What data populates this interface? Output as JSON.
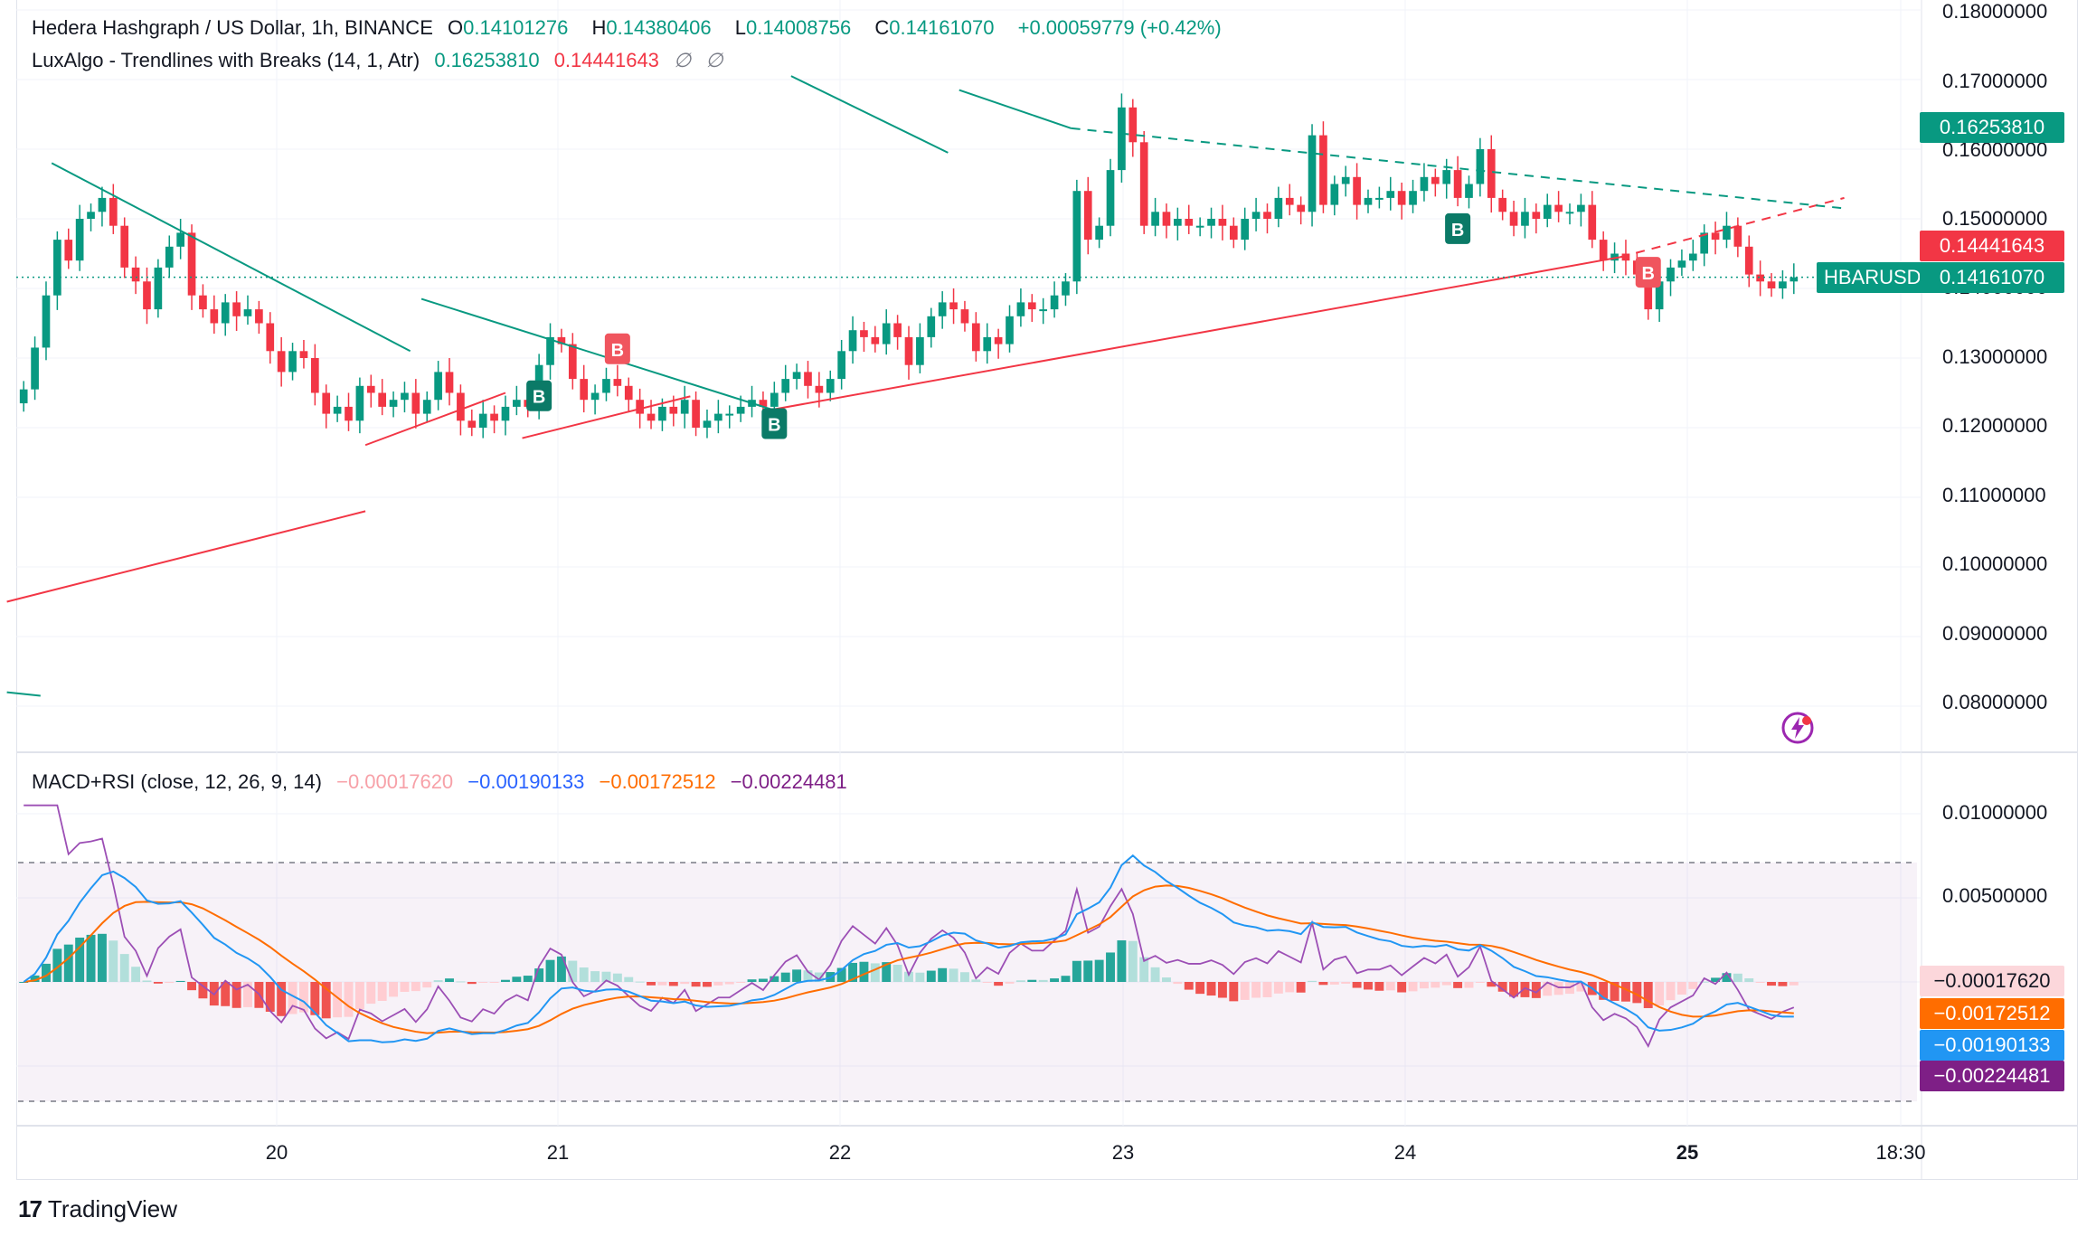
{
  "header": {
    "title": "Hedera Hashgraph / US Dollar, 1h, BINANCE",
    "o_label": "O",
    "o_value": "0.14101276",
    "h_label": "H",
    "h_value": "0.14380406",
    "l_label": "L",
    "l_value": "0.14008756",
    "c_label": "C",
    "c_value": "0.14161070",
    "change": "+0.00059779 (+0.42%)"
  },
  "indicator": {
    "name": "LuxAlgo - Trendlines with Breaks (14, 1, Atr)",
    "upper": "0.16253810",
    "lower": "0.14441643",
    "na1": "∅",
    "na2": "∅"
  },
  "macd": {
    "name": "MACD+RSI (close, 12, 26, 9, 14)",
    "hist": "−0.00017620",
    "macd": "−0.00190133",
    "signal": "−0.00172512",
    "rsi": "−0.00224481"
  },
  "price_axis_labels": [
    "0.18000000",
    "0.17000000",
    "0.16000000",
    "0.15000000",
    "0.14000000",
    "0.13000000",
    "0.12000000",
    "0.11000000",
    "0.10000000",
    "0.09000000",
    "0.08000000"
  ],
  "macd_axis_labels": [
    "0.01000000",
    "0.00500000"
  ],
  "tags": {
    "upper_value": "0.16253810",
    "lower_value": "0.14441643",
    "symbol": "HBARUSD",
    "last_value": "0.14161070",
    "macd_hist": "−0.00017620",
    "macd_signal": "−0.00172512",
    "macd_line": "−0.00190133",
    "macd_rsi": "−0.00224481"
  },
  "date_labels": [
    "20",
    "21",
    "22",
    "23",
    "24",
    "25",
    "18:30"
  ],
  "logo": {
    "text": "TradingView",
    "mark": "17"
  },
  "colors": {
    "up": "#089981",
    "down": "#f23645",
    "teal_line": "#089981",
    "red_line": "#f23645",
    "macd": "#2196f3",
    "signal": "#ff6d00",
    "rsi": "#9c4fb5",
    "hist_up": "#26a69a",
    "hist_down": "#ef5350"
  },
  "chart_data": {
    "type": "candlestick",
    "price_ylim": [
      0.075,
      0.18
    ],
    "last_price": 0.1416107,
    "x_ticks": [
      "20",
      "21",
      "22",
      "23",
      "24",
      "25",
      "18:30"
    ],
    "closes": [
      0.1255,
      0.1315,
      0.139,
      0.147,
      0.144,
      0.15,
      0.151,
      0.153,
      0.149,
      0.143,
      0.141,
      0.137,
      0.143,
      0.146,
      0.148,
      0.139,
      0.137,
      0.135,
      0.138,
      0.136,
      0.137,
      0.135,
      0.131,
      0.128,
      0.131,
      0.13,
      0.125,
      0.122,
      0.123,
      0.121,
      0.126,
      0.125,
      0.123,
      0.124,
      0.125,
      0.122,
      0.124,
      0.128,
      0.125,
      0.121,
      0.12,
      0.122,
      0.121,
      0.123,
      0.124,
      0.123,
      0.129,
      0.133,
      0.132,
      0.127,
      0.124,
      0.125,
      0.127,
      0.126,
      0.124,
      0.122,
      0.121,
      0.123,
      0.122,
      0.124,
      0.12,
      0.121,
      0.122,
      0.122,
      0.123,
      0.124,
      0.123,
      0.125,
      0.127,
      0.128,
      0.126,
      0.125,
      0.127,
      0.131,
      0.134,
      0.133,
      0.132,
      0.135,
      0.133,
      0.129,
      0.133,
      0.136,
      0.138,
      0.137,
      0.135,
      0.131,
      0.133,
      0.132,
      0.136,
      0.138,
      0.137,
      0.137,
      0.139,
      0.141,
      0.154,
      0.147,
      0.149,
      0.157,
      0.166,
      0.161,
      0.149,
      0.151,
      0.149,
      0.15,
      0.149,
      0.149,
      0.15,
      0.149,
      0.147,
      0.15,
      0.151,
      0.15,
      0.153,
      0.152,
      0.151,
      0.162,
      0.152,
      0.155,
      0.156,
      0.152,
      0.153,
      0.153,
      0.154,
      0.152,
      0.154,
      0.156,
      0.155,
      0.157,
      0.153,
      0.155,
      0.16,
      0.153,
      0.151,
      0.149,
      0.151,
      0.15,
      0.152,
      0.151,
      0.151,
      0.152,
      0.147,
      0.144,
      0.145,
      0.144,
      0.142,
      0.137,
      0.141,
      0.143,
      0.144,
      0.145,
      0.148,
      0.147,
      0.149,
      0.146,
      0.142,
      0.141,
      0.14,
      0.141,
      0.1416
    ],
    "signals": [
      {
        "label": "B",
        "type": "buy",
        "index": 46
      },
      {
        "label": "B",
        "type": "sell",
        "index": 53
      },
      {
        "label": "B",
        "type": "buy",
        "index": 67
      },
      {
        "label": "B",
        "type": "buy",
        "index": 128
      },
      {
        "label": "B",
        "type": "sell",
        "index": 145
      }
    ],
    "macd_ylim": [
      -0.0081,
      0.0125
    ],
    "macd_panel": {
      "rsi_band_upper": 0.0071,
      "rsi_band_lower": -0.0071,
      "series": [
        {
          "name": "MACD",
          "last": -0.00190133
        },
        {
          "name": "Signal",
          "last": -0.00172512
        },
        {
          "name": "Histogram",
          "last": -0.0001762
        },
        {
          "name": "RSI",
          "last": -0.00224481
        }
      ]
    }
  }
}
